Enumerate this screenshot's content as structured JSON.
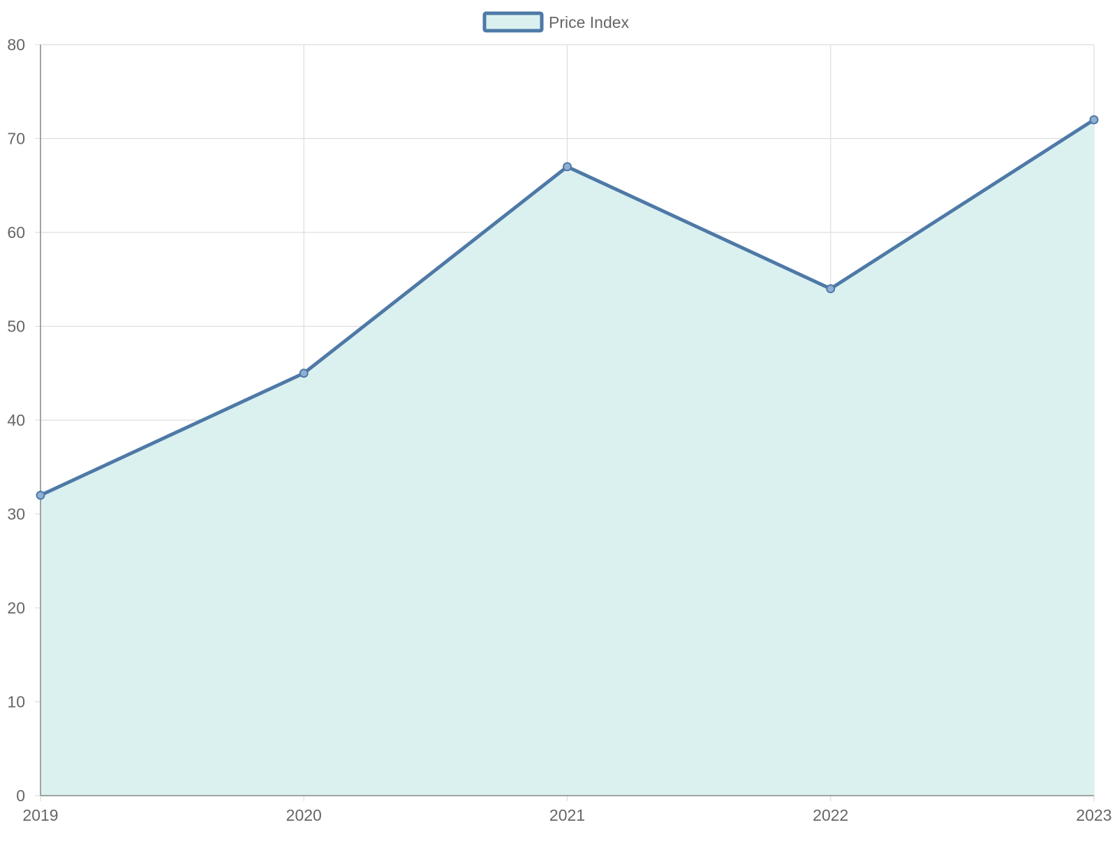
{
  "chart_data": {
    "type": "area",
    "categories": [
      "2019",
      "2020",
      "2021",
      "2022",
      "2023"
    ],
    "series": [
      {
        "name": "Price Index",
        "values": [
          32,
          45,
          67,
          54,
          72
        ],
        "line_color": "#4e79a7",
        "fill_color": "#dbf1f0"
      }
    ],
    "ylim": [
      0,
      80
    ],
    "yticks": [
      0,
      10,
      20,
      30,
      40,
      50,
      60,
      70,
      80
    ],
    "grid": true,
    "legend_position": "top-center",
    "colors": {
      "grid": "#dddddd",
      "axis": "#888888",
      "tick_text": "#666666"
    }
  }
}
